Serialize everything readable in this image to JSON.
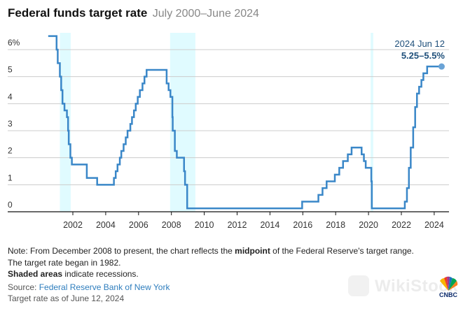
{
  "header": {
    "title": "Federal funds target rate",
    "subtitle": "July 2000–June 2024"
  },
  "annotation": {
    "date": "2024 Jun 12",
    "value": "5.25–5.5%"
  },
  "notes": {
    "line1_pre": "Note: From December 2008 to present, the chart reflects the ",
    "line1_bold": "midpoint",
    "line1_post": " of the Federal Reserve's target range. The target rate began in 1982.",
    "shaded_bold": "Shaded areas",
    "shaded_rest": " indicate recessions.",
    "source_label": "Source: ",
    "source_link": "Federal Reserve Bank of New York",
    "as_of": "Target rate as of June 12, 2024"
  },
  "watermark": {
    "text": "WikiStock",
    "brand": "CNBC"
  },
  "colors": {
    "line": "#3a87c8",
    "recession": "#e0fbff",
    "grid": "#cccccc",
    "axis": "#111111",
    "annotation": "#1e4f7a"
  },
  "chart_data": {
    "type": "line",
    "step": true,
    "title": "Federal funds target rate",
    "subtitle": "July 2000–June 2024",
    "xlabel": "",
    "ylabel": "",
    "xlim": [
      1999.0,
      2025.0
    ],
    "ylim": [
      0,
      6
    ],
    "y_ticks": [
      0,
      1,
      2,
      3,
      4,
      5,
      6
    ],
    "y_tick_labels": [
      "0",
      "1",
      "2",
      "3",
      "4",
      "5",
      "6%"
    ],
    "x_ticks": [
      2002,
      2004,
      2006,
      2008,
      2010,
      2012,
      2014,
      2016,
      2018,
      2020,
      2022,
      2024
    ],
    "x_tick_labels": [
      "2002",
      "2004",
      "2006",
      "2008",
      "2010",
      "2012",
      "2014",
      "2016",
      "2018",
      "2020",
      "2022",
      "2024"
    ],
    "grid": true,
    "recessions": [
      {
        "start": 2001.21,
        "end": 2001.87
      },
      {
        "start": 2007.92,
        "end": 2009.46
      },
      {
        "start": 2020.13,
        "end": 2020.29
      }
    ],
    "series": [
      {
        "name": "Federal funds target rate (%)",
        "points": [
          [
            2000.5,
            6.5
          ],
          [
            2001.01,
            6.0
          ],
          [
            2001.08,
            5.5
          ],
          [
            2001.21,
            5.0
          ],
          [
            2001.29,
            4.5
          ],
          [
            2001.37,
            4.0
          ],
          [
            2001.49,
            3.75
          ],
          [
            2001.64,
            3.5
          ],
          [
            2001.71,
            3.0
          ],
          [
            2001.75,
            2.5
          ],
          [
            2001.85,
            2.0
          ],
          [
            2001.94,
            1.75
          ],
          [
            2002.85,
            1.25
          ],
          [
            2003.48,
            1.0
          ],
          [
            2004.5,
            1.25
          ],
          [
            2004.61,
            1.5
          ],
          [
            2004.72,
            1.75
          ],
          [
            2004.86,
            2.0
          ],
          [
            2004.95,
            2.25
          ],
          [
            2005.09,
            2.5
          ],
          [
            2005.22,
            2.75
          ],
          [
            2005.33,
            3.0
          ],
          [
            2005.5,
            3.25
          ],
          [
            2005.6,
            3.5
          ],
          [
            2005.72,
            3.75
          ],
          [
            2005.83,
            4.0
          ],
          [
            2005.95,
            4.25
          ],
          [
            2006.08,
            4.5
          ],
          [
            2006.24,
            4.75
          ],
          [
            2006.36,
            5.0
          ],
          [
            2006.49,
            5.25
          ],
          [
            2007.71,
            4.75
          ],
          [
            2007.83,
            4.5
          ],
          [
            2007.94,
            4.25
          ],
          [
            2008.06,
            3.5
          ],
          [
            2008.08,
            3.0
          ],
          [
            2008.21,
            2.25
          ],
          [
            2008.33,
            2.0
          ],
          [
            2008.77,
            1.5
          ],
          [
            2008.83,
            1.0
          ],
          [
            2008.96,
            0.125
          ],
          [
            2015.96,
            0.375
          ],
          [
            2016.95,
            0.625
          ],
          [
            2017.2,
            0.875
          ],
          [
            2017.45,
            1.125
          ],
          [
            2017.95,
            1.375
          ],
          [
            2018.22,
            1.625
          ],
          [
            2018.45,
            1.875
          ],
          [
            2018.74,
            2.125
          ],
          [
            2018.97,
            2.375
          ],
          [
            2019.58,
            2.125
          ],
          [
            2019.72,
            1.875
          ],
          [
            2019.83,
            1.625
          ],
          [
            2020.17,
            1.125
          ],
          [
            2020.2,
            0.125
          ],
          [
            2022.21,
            0.375
          ],
          [
            2022.34,
            0.875
          ],
          [
            2022.46,
            1.625
          ],
          [
            2022.57,
            2.375
          ],
          [
            2022.72,
            3.125
          ],
          [
            2022.84,
            3.875
          ],
          [
            2022.95,
            4.375
          ],
          [
            2023.08,
            4.625
          ],
          [
            2023.22,
            4.875
          ],
          [
            2023.34,
            5.125
          ],
          [
            2023.57,
            5.375
          ],
          [
            2024.45,
            5.375
          ]
        ]
      }
    ],
    "annotations": [
      {
        "x": 2024.45,
        "y": 5.375,
        "label": "2024 Jun 12",
        "value_label": "5.25–5.5%"
      }
    ]
  }
}
